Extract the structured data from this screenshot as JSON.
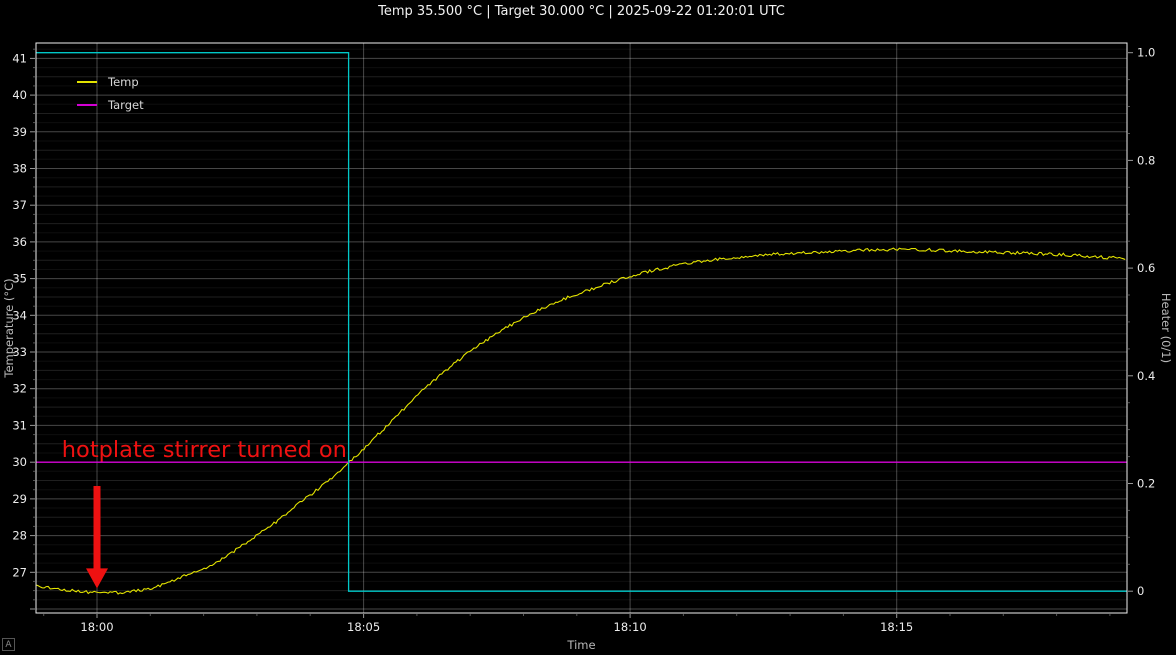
{
  "autorange_button": "A",
  "chart_data": {
    "type": "line",
    "title": "Temp 35.500 °C | Target 30.000 °C | 2025-09-22 01:20:01 UTC",
    "xlabel": "Time",
    "ylabel_left": "Temperature (°C)",
    "ylabel_right": "Heater (0/1)",
    "grid": true,
    "legend_position": "top-left",
    "legend": [
      {
        "label": "Temp",
        "color": "#e3e300"
      },
      {
        "label": "Target",
        "color": "#d400d4"
      }
    ],
    "x_ticks": [
      {
        "t": 0,
        "label": "18:00"
      },
      {
        "t": 5,
        "label": "18:05"
      },
      {
        "t": 10,
        "label": "18:10"
      },
      {
        "t": 15,
        "label": "18:15"
      }
    ],
    "x_minor_step_min": 1,
    "x_range_min": [
      -1.144,
      19.32
    ],
    "y_left_ticks": [
      27,
      28,
      29,
      30,
      31,
      32,
      33,
      34,
      35,
      36,
      37,
      38,
      39,
      40,
      41
    ],
    "y_left_range": [
      25.89,
      41.42
    ],
    "y_right_ticks": [
      {
        "v": 0,
        "label": "0"
      },
      {
        "v": 0.2,
        "label": "0.2"
      },
      {
        "v": 0.4,
        "label": "0.4"
      },
      {
        "v": 0.6,
        "label": "0.6"
      },
      {
        "v": 0.8,
        "label": "0.8"
      },
      {
        "v": 1.0,
        "label": "1.0"
      }
    ],
    "y_right_range": [
      -0.0405,
      1.018
    ],
    "series": [
      {
        "name": "Temp",
        "axis": "left",
        "color": "#e3e300",
        "width": 1.1,
        "noise_amp": 0.04,
        "points": [
          [
            -1.14,
            26.62
          ],
          [
            -0.8,
            26.56
          ],
          [
            -0.5,
            26.5
          ],
          [
            -0.2,
            26.46
          ],
          [
            0.0,
            26.44
          ],
          [
            0.35,
            26.44
          ],
          [
            0.7,
            26.48
          ],
          [
            1.0,
            26.55
          ],
          [
            1.3,
            26.7
          ],
          [
            1.6,
            26.88
          ],
          [
            1.9,
            27.02
          ],
          [
            2.2,
            27.22
          ],
          [
            2.5,
            27.5
          ],
          [
            2.8,
            27.8
          ],
          [
            3.1,
            28.1
          ],
          [
            3.4,
            28.42
          ],
          [
            3.7,
            28.78
          ],
          [
            4.0,
            29.1
          ],
          [
            4.3,
            29.45
          ],
          [
            4.6,
            29.82
          ],
          [
            4.9,
            30.22
          ],
          [
            5.2,
            30.65
          ],
          [
            5.5,
            31.08
          ],
          [
            5.8,
            31.52
          ],
          [
            6.1,
            31.95
          ],
          [
            6.4,
            32.32
          ],
          [
            6.7,
            32.68
          ],
          [
            7.0,
            33.02
          ],
          [
            7.3,
            33.32
          ],
          [
            7.6,
            33.6
          ],
          [
            7.9,
            33.85
          ],
          [
            8.2,
            34.08
          ],
          [
            8.5,
            34.28
          ],
          [
            8.8,
            34.47
          ],
          [
            9.1,
            34.63
          ],
          [
            9.4,
            34.78
          ],
          [
            9.7,
            34.93
          ],
          [
            10.0,
            35.06
          ],
          [
            10.3,
            35.18
          ],
          [
            10.6,
            35.28
          ],
          [
            10.9,
            35.37
          ],
          [
            11.2,
            35.44
          ],
          [
            11.5,
            35.5
          ],
          [
            12.0,
            35.58
          ],
          [
            12.5,
            35.64
          ],
          [
            13.0,
            35.69
          ],
          [
            13.5,
            35.72
          ],
          [
            14.0,
            35.75
          ],
          [
            14.5,
            35.78
          ],
          [
            15.0,
            35.8
          ],
          [
            15.5,
            35.79
          ],
          [
            16.0,
            35.76
          ],
          [
            16.5,
            35.73
          ],
          [
            17.0,
            35.71
          ],
          [
            17.5,
            35.69
          ],
          [
            18.0,
            35.66
          ],
          [
            18.5,
            35.62
          ],
          [
            19.0,
            35.57
          ],
          [
            19.32,
            35.55
          ]
        ]
      },
      {
        "name": "Target",
        "axis": "left",
        "color": "#d400d4",
        "width": 1.3,
        "points": [
          [
            -1.144,
            30
          ],
          [
            19.32,
            30
          ]
        ]
      },
      {
        "name": "Heater",
        "axis": "right",
        "color": "#00c8c8",
        "width": 1.3,
        "points": [
          [
            -1.144,
            1
          ],
          [
            4.72,
            1
          ],
          [
            4.72,
            0
          ],
          [
            19.32,
            0
          ]
        ]
      }
    ],
    "annotation": {
      "text": "hotplate stirrer turned on",
      "color": "#ee1111",
      "font_px": 22.5,
      "text_t": -0.66,
      "text_temp": 30.38,
      "arrow_t": 0.0,
      "arrow_from_temp": 29.35,
      "arrow_to_temp": 26.56
    }
  }
}
